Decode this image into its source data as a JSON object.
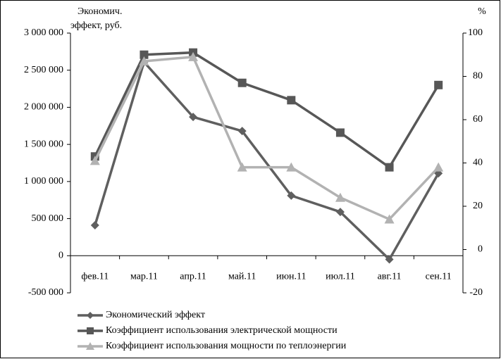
{
  "chart_data": {
    "type": "line",
    "ylabel": [
      "Экономич.",
      "эффект, руб."
    ],
    "y2label": "%",
    "categories": [
      "фев.11",
      "мар.11",
      "апр.11",
      "май.11",
      "июн.11",
      "июл.11",
      "авг.11",
      "сен.11"
    ],
    "series": [
      {
        "name": "Экономический эффект",
        "color": "#5f5f5f",
        "marker": "diamond",
        "axis": "y",
        "values": [
          410000,
          2610000,
          1870000,
          1680000,
          810000,
          590000,
          -50000,
          1110000
        ]
      },
      {
        "name": "Коэффициент использования электрической мощности",
        "color": "#575757",
        "marker": "square",
        "axis": "y2",
        "values": [
          43,
          90,
          91,
          77,
          69,
          54,
          38,
          76
        ]
      },
      {
        "name": "Коэффициент использования мощности по теплоэнергии",
        "color": "#b2b2b2",
        "marker": "triangle",
        "axis": "y2",
        "values": [
          41,
          87,
          89,
          38,
          38,
          24,
          14,
          38
        ]
      }
    ],
    "ylim": [
      -500000,
      3000000
    ],
    "yticks": [
      {
        "value": -500000,
        "label": "-500 000"
      },
      0,
      {
        "value": 500000,
        "label": "500 000"
      },
      {
        "value": 1000000,
        "label": "1 000 000"
      },
      {
        "value": 1500000,
        "label": "1 500 000"
      },
      {
        "value": 2000000,
        "label": "2 000 000"
      },
      {
        "value": 2500000,
        "label": "2 500 000"
      },
      {
        "value": 3000000,
        "label": "3 000 000"
      }
    ],
    "y2lim": [
      -20,
      100
    ],
    "y2ticks": [
      -20,
      0,
      20,
      40,
      60,
      80,
      100
    ],
    "grid": false,
    "legend": "bottom"
  }
}
